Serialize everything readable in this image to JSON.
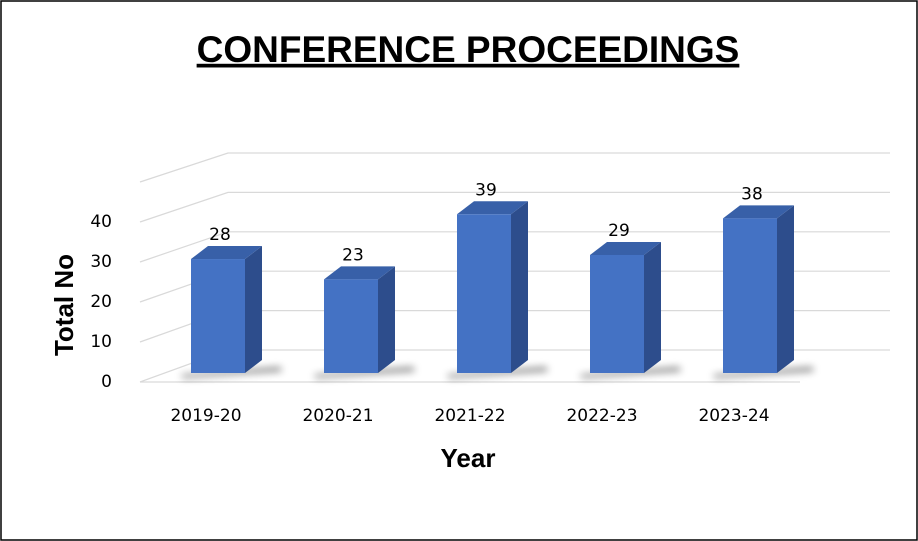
{
  "chart_data": {
    "type": "bar",
    "title": "CONFERENCE PROCEEDINGS",
    "x_label": "Year",
    "y_label": "Total No",
    "categories": [
      "2019-20",
      "2020-21",
      "2021-22",
      "2022-23",
      "2023-24"
    ],
    "values": [
      28,
      23,
      39,
      29,
      38
    ],
    "color": "#4472c4",
    "ylim": [
      0,
      50
    ],
    "yticks": [
      0,
      10,
      20,
      30,
      40
    ],
    "grid": true
  }
}
